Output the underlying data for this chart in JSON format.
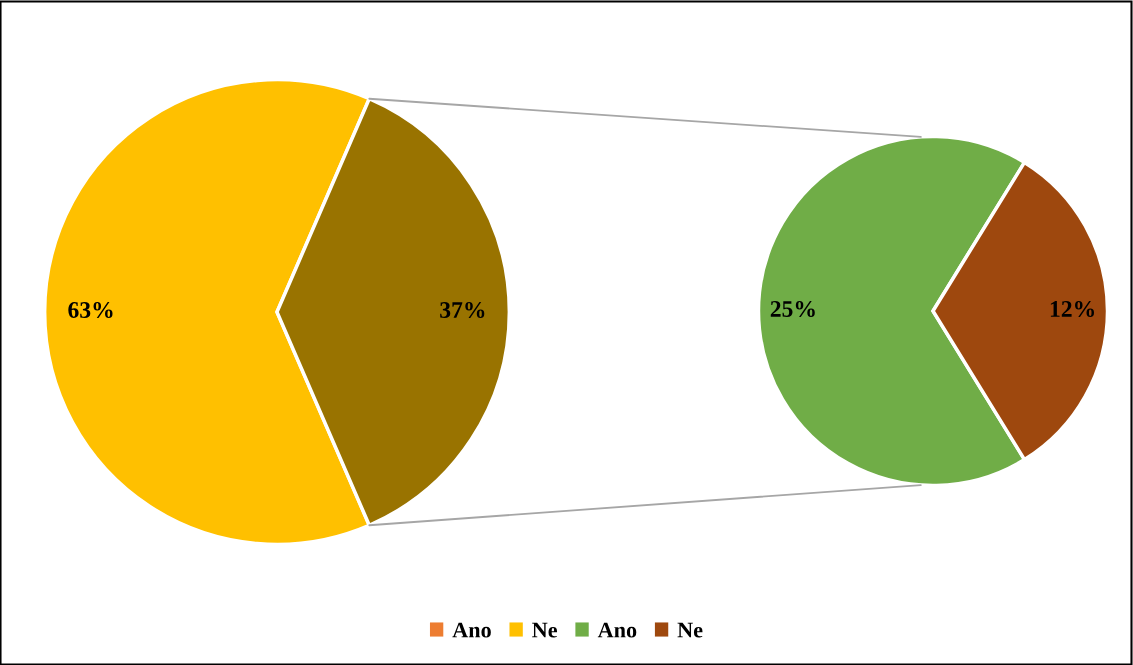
{
  "chart_data": [
    {
      "type": "pie",
      "categories": [
        "Ano",
        "Ne",
        null
      ],
      "values": [
        0,
        63,
        37
      ],
      "colors": [
        "#ed7d31",
        "#ffc000",
        "#997300"
      ],
      "value_labels": [
        null,
        "63%",
        "37%"
      ],
      "legend": "bottom"
    },
    {
      "type": "pie",
      "categories": [
        "Ano",
        "Ne"
      ],
      "values": [
        25,
        12
      ],
      "colors": [
        "#70ad47",
        "#9e480e"
      ],
      "value_labels": [
        "25%",
        "12%"
      ],
      "legend": "bottom"
    }
  ]
}
